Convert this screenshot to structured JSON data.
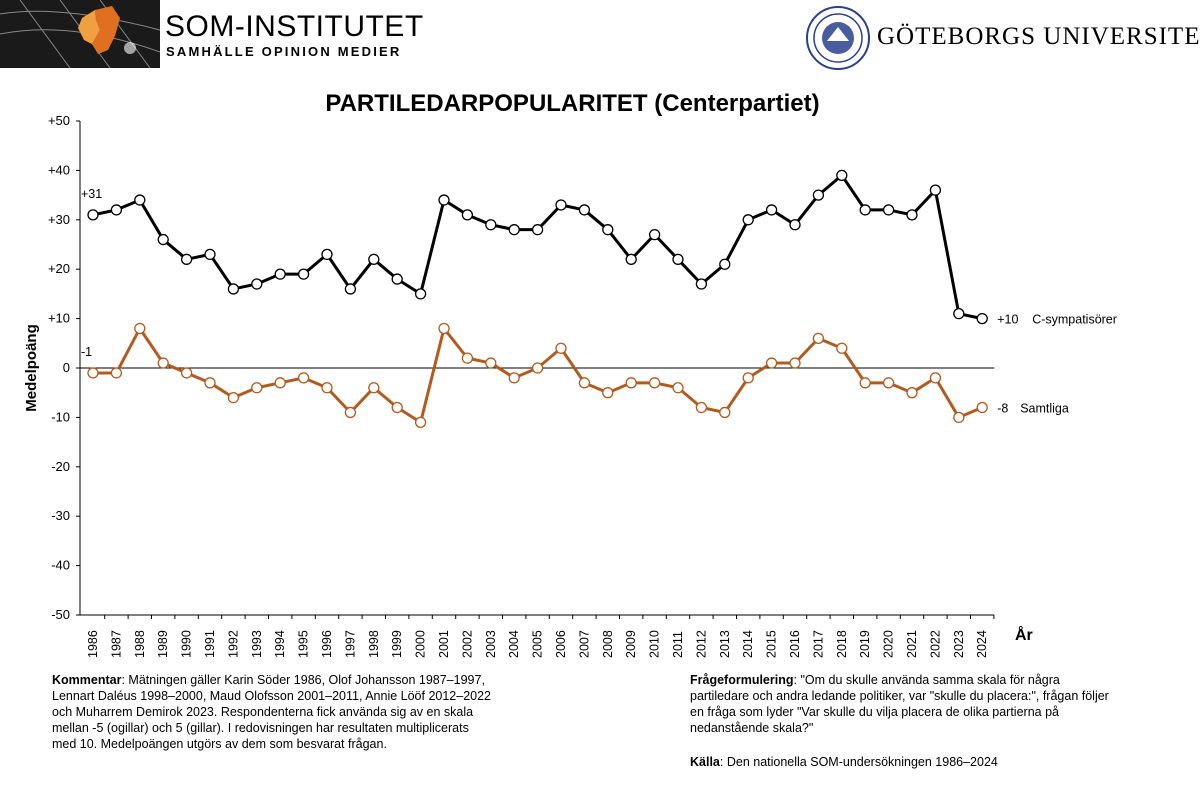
{
  "header": {
    "som_title": "SOM-INSTITUTET",
    "som_subtitle": "SAMHÄLLE OPINION MEDIER",
    "university": "GÖTEBORGS UNIVERSITET"
  },
  "colors": {
    "series1": "#000000",
    "series2": "#B35A1F"
  },
  "chart_data": {
    "type": "line",
    "title": "PARTILEDARPOPULARITET (Centerpartiet)",
    "ylabel": "Medelpoäng",
    "xlabel": "År",
    "ylim": [
      -50,
      50
    ],
    "ytick_labels": [
      "+50",
      "+40",
      "+30",
      "+20",
      "+10",
      "0",
      "-10",
      "-20",
      "-30",
      "-40",
      "-50"
    ],
    "ytick_values": [
      50,
      40,
      30,
      20,
      10,
      0,
      -10,
      -20,
      -30,
      -40,
      -50
    ],
    "categories": [
      "1986",
      "1987",
      "1988",
      "1989",
      "1990",
      "1991",
      "1992",
      "1993",
      "1994",
      "1995",
      "1996",
      "1997",
      "1998",
      "1999",
      "2000",
      "2001",
      "2002",
      "2003",
      "2004",
      "2005",
      "2006",
      "2007",
      "2008",
      "2009",
      "2010",
      "2011",
      "2012",
      "2013",
      "2014",
      "2015",
      "2016",
      "2017",
      "2018",
      "2019",
      "2020",
      "2021",
      "2022",
      "2023",
      "2024"
    ],
    "series": [
      {
        "name": "C-sympatisörer",
        "start_label": "+31",
        "end_label": "+10",
        "values": [
          31,
          32,
          34,
          26,
          22,
          23,
          16,
          17,
          19,
          19,
          23,
          16,
          22,
          18,
          15,
          34,
          31,
          29,
          28,
          28,
          33,
          32,
          28,
          22,
          27,
          22,
          17,
          21,
          30,
          32,
          29,
          35,
          39,
          32,
          32,
          31,
          36,
          11,
          10
        ]
      },
      {
        "name": "Samtliga",
        "start_label": "-1",
        "end_label": "-8",
        "values": [
          -1,
          -1,
          8,
          1,
          -1,
          -3,
          -6,
          -4,
          -3,
          -2,
          -4,
          -9,
          -4,
          -8,
          -11,
          8,
          2,
          1,
          -2,
          0,
          4,
          -3,
          -5,
          -3,
          -3,
          -4,
          -8,
          -9,
          -2,
          1,
          1,
          6,
          4,
          -3,
          -3,
          -5,
          -2,
          -10,
          -8
        ]
      }
    ]
  },
  "footer": {
    "comment_label": "Kommentar",
    "comment_text": ": Mätningen gäller Karin Söder 1986, Olof Johansson 1987–1997, Lennart Daléus 1998–2000, Maud Olofsson 2001–2011, Annie Lööf 2012–2022 och Muharrem Demirok 2023. Respondenterna fick använda sig av en skala mellan -5 (ogillar) och 5 (gillar). I redovisningen har resultaten multiplicerats med 10. Medelpoängen utgörs av dem som besvarat frågan.",
    "question_label": "Frågeformulering",
    "question_text": ": \"Om du skulle använda samma skala för några partiledare och andra ledande politiker, var \"skulle du placera:\", frågan följer en fråga som lyder \"Var skulle du vilja placera de olika partierna på nedanstående skala?\"",
    "source_label": "Källa",
    "source_text": ": Den nationella SOM-undersökningen 1986–2024"
  }
}
